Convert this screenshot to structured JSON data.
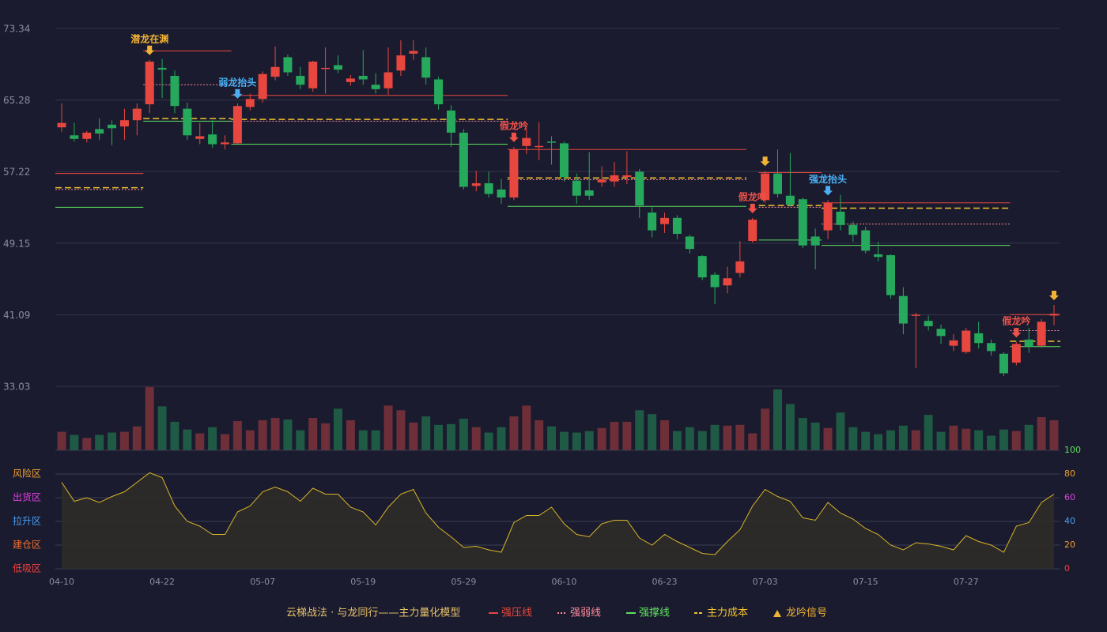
{
  "chart_data": {
    "type": "candlestick",
    "categories": [
      "04-10",
      null,
      null,
      null,
      null,
      null,
      null,
      null,
      "04-22",
      null,
      null,
      null,
      null,
      null,
      null,
      null,
      "05-07",
      null,
      null,
      null,
      null,
      null,
      null,
      null,
      "05-19",
      null,
      null,
      null,
      null,
      null,
      null,
      null,
      "05-29",
      null,
      null,
      null,
      null,
      null,
      null,
      null,
      "06-10",
      null,
      null,
      null,
      null,
      null,
      null,
      null,
      "06-23",
      null,
      null,
      null,
      null,
      null,
      null,
      null,
      "07-03",
      null,
      null,
      null,
      null,
      null,
      null,
      null,
      "07-15",
      null,
      null,
      null,
      null,
      null,
      null,
      null,
      "07-27",
      null,
      null,
      null,
      null,
      null,
      null,
      null
    ],
    "candles": [
      [
        62.2,
        62.7,
        61.7,
        64.9
      ],
      [
        61.3,
        60.9,
        60.6,
        62.7
      ],
      [
        60.9,
        61.6,
        60.5,
        61.8
      ],
      [
        62.0,
        61.5,
        60.8,
        63.2
      ],
      [
        62.5,
        62.1,
        60.2,
        63.0
      ],
      [
        62.3,
        63.0,
        60.8,
        64.3
      ],
      [
        63.0,
        64.3,
        61.3,
        64.9
      ],
      [
        64.8,
        69.6,
        63.8,
        69.8
      ],
      [
        68.9,
        68.7,
        65.5,
        69.9
      ],
      [
        68.0,
        64.6,
        63.8,
        68.6
      ],
      [
        64.3,
        61.3,
        60.8,
        65.0
      ],
      [
        60.9,
        61.2,
        60.3,
        62.7
      ],
      [
        61.4,
        60.3,
        59.9,
        63.0
      ],
      [
        60.3,
        60.5,
        59.7,
        61.3
      ],
      [
        60.4,
        64.6,
        60.2,
        64.9
      ],
      [
        64.5,
        65.4,
        64.1,
        66.0
      ],
      [
        65.4,
        68.2,
        65.0,
        68.5
      ],
      [
        67.9,
        69.0,
        67.5,
        71.3
      ],
      [
        70.1,
        68.4,
        68.0,
        70.4
      ],
      [
        68.0,
        67.0,
        66.5,
        69.0
      ],
      [
        66.6,
        69.6,
        66.2,
        69.7
      ],
      [
        68.8,
        68.9,
        66.0,
        71.2
      ],
      [
        69.2,
        68.7,
        68.3,
        70.3
      ],
      [
        67.3,
        67.7,
        66.9,
        68.1
      ],
      [
        68.0,
        67.6,
        67.0,
        70.9
      ],
      [
        67.0,
        66.5,
        66.0,
        68.3
      ],
      [
        66.6,
        68.4,
        65.9,
        71.2
      ],
      [
        68.6,
        70.3,
        68.0,
        72.0
      ],
      [
        70.5,
        70.8,
        69.8,
        72.0
      ],
      [
        70.1,
        67.8,
        67.0,
        71.2
      ],
      [
        67.6,
        64.8,
        64.2,
        67.9
      ],
      [
        64.1,
        61.6,
        60.0,
        64.7
      ],
      [
        61.6,
        55.5,
        55.2,
        62.0
      ],
      [
        55.6,
        55.9,
        55.0,
        57.3
      ],
      [
        55.9,
        54.7,
        54.3,
        57.2
      ],
      [
        55.2,
        54.3,
        53.6,
        56.4
      ],
      [
        54.3,
        59.7,
        54.0,
        60.0
      ],
      [
        60.1,
        61.0,
        59.2,
        62.1
      ],
      [
        60.0,
        60.1,
        58.5,
        62.8
      ],
      [
        60.6,
        60.5,
        58.0,
        61.2
      ],
      [
        60.4,
        56.6,
        56.1,
        60.6
      ],
      [
        56.2,
        54.5,
        53.6,
        57.0
      ],
      [
        55.1,
        54.5,
        54.0,
        59.4
      ],
      [
        56.0,
        56.3,
        55.5,
        57.8
      ],
      [
        56.1,
        56.8,
        55.5,
        58.3
      ],
      [
        56.6,
        56.8,
        55.8,
        59.5
      ],
      [
        57.2,
        53.4,
        52.0,
        57.5
      ],
      [
        52.6,
        50.6,
        49.8,
        53.2
      ],
      [
        51.3,
        52.0,
        50.3,
        52.6
      ],
      [
        52.0,
        50.2,
        49.6,
        52.3
      ],
      [
        49.9,
        48.5,
        48.0,
        50.1
      ],
      [
        47.7,
        45.3,
        45.0,
        47.8
      ],
      [
        45.6,
        44.2,
        42.3,
        45.9
      ],
      [
        44.4,
        45.2,
        43.5,
        46.5
      ],
      [
        45.8,
        47.1,
        45.3,
        49.4
      ],
      [
        49.4,
        51.8,
        49.2,
        52.0
      ],
      [
        54.0,
        57.0,
        53.7,
        57.3
      ],
      [
        57.0,
        54.7,
        54.3,
        59.7
      ],
      [
        54.5,
        53.5,
        53.3,
        59.3
      ],
      [
        54.1,
        48.9,
        48.6,
        54.3
      ],
      [
        49.9,
        48.9,
        46.2,
        50.8
      ],
      [
        50.6,
        53.7,
        49.6,
        54.0
      ],
      [
        52.7,
        51.2,
        50.6,
        54.6
      ],
      [
        51.2,
        50.1,
        49.3,
        51.6
      ],
      [
        50.6,
        48.3,
        48.0,
        51.0
      ],
      [
        47.9,
        47.6,
        47.1,
        49.3
      ],
      [
        47.8,
        43.3,
        42.9,
        47.9
      ],
      [
        43.2,
        40.1,
        38.9,
        44.2
      ],
      [
        41.0,
        41.1,
        35.1,
        41.3
      ],
      [
        40.4,
        39.8,
        39.3,
        41.0
      ],
      [
        39.5,
        38.7,
        37.8,
        40.0
      ],
      [
        37.6,
        38.2,
        37.0,
        38.9
      ],
      [
        36.9,
        39.3,
        36.7,
        39.6
      ],
      [
        39.0,
        37.9,
        37.3,
        40.3
      ],
      [
        37.9,
        37.0,
        36.5,
        38.3
      ],
      [
        36.7,
        34.5,
        34.2,
        36.9
      ],
      [
        35.7,
        37.8,
        35.4,
        38.0
      ],
      [
        38.3,
        37.5,
        36.8,
        39.6
      ],
      [
        37.6,
        40.3,
        37.4,
        40.6
      ],
      [
        41.0,
        41.2,
        39.9,
        42.2
      ]
    ],
    "ylim": [
      33.03,
      73.34
    ],
    "yticks": [
      33.03,
      41.09,
      49.15,
      57.22,
      65.28,
      73.34
    ],
    "up_color": "#e8473f",
    "down_color": "#26a95c",
    "volume": [
      24,
      20,
      16,
      20,
      23,
      24,
      31,
      82,
      57,
      37,
      27,
      22,
      30,
      21,
      38,
      26,
      39,
      42,
      40,
      26,
      42,
      35,
      54,
      39,
      26,
      26,
      58,
      52,
      36,
      44,
      33,
      34,
      41,
      30,
      23,
      30,
      44,
      58,
      39,
      31,
      24,
      23,
      25,
      29,
      37,
      37,
      52,
      47,
      39,
      25,
      30,
      25,
      33,
      32,
      33,
      22,
      54,
      79,
      60,
      42,
      36,
      29,
      49,
      30,
      24,
      21,
      26,
      32,
      26,
      46,
      24,
      32,
      28,
      26,
      19,
      27,
      25,
      33,
      43,
      39
    ],
    "zones": [
      {
        "from": 0,
        "to": 6,
        "levels": [
          57.0,
          55.2,
          53.2,
          55.4
        ]
      },
      {
        "from": 7,
        "to": 13,
        "levels": [
          70.8,
          67.0,
          62.9,
          63.2
        ]
      },
      {
        "from": 14,
        "to": 35,
        "levels": [
          65.8,
          62.9,
          60.3,
          63.1
        ]
      },
      {
        "from": 36,
        "to": 54,
        "levels": [
          59.7,
          56.3,
          53.3,
          56.5
        ]
      },
      {
        "from": 56,
        "to": 60,
        "levels": [
          57.1,
          53.2,
          49.5,
          53.4
        ]
      },
      {
        "from": 61,
        "to": 75,
        "levels": [
          53.7,
          51.3,
          48.9,
          53.1
        ]
      },
      {
        "from": 76,
        "to": 79,
        "levels": [
          41.1,
          39.3,
          37.5,
          38.1
        ]
      }
    ],
    "signals": [
      {
        "index": 7,
        "label": "潜龙在渊",
        "color": "#f2b233"
      },
      {
        "index": 14,
        "label": "弱龙抬头",
        "color": "#4ab0f5"
      },
      {
        "index": 36,
        "label": "假龙吟",
        "color": "#f0524a"
      },
      {
        "index": 55,
        "label": "假龙吟",
        "color": "#f0524a"
      },
      {
        "index": 56,
        "label": null,
        "color": "#f2b233"
      },
      {
        "index": 61,
        "label": "强龙抬头",
        "color": "#4ab0f5"
      },
      {
        "index": 76,
        "label": "假龙吟",
        "color": "#f0524a"
      },
      {
        "index": 79,
        "label": null,
        "color": "#f2b233"
      }
    ],
    "oscillator": {
      "values": [
        73,
        57,
        60,
        56,
        61,
        65,
        73,
        81,
        77,
        53,
        40,
        36,
        29,
        29,
        48,
        53,
        65,
        69,
        65,
        57,
        68,
        63,
        63,
        52,
        48,
        37,
        52,
        63,
        67,
        47,
        35,
        27,
        18,
        19,
        16,
        14,
        39,
        45,
        45,
        52,
        38,
        29,
        27,
        38,
        41,
        41,
        26,
        20,
        29,
        23,
        18,
        13,
        12,
        23,
        33,
        53,
        67,
        61,
        57,
        43,
        41,
        56,
        47,
        42,
        34,
        29,
        20,
        16,
        22,
        21,
        19,
        16,
        28,
        23,
        20,
        14,
        36,
        39,
        56,
        63
      ],
      "color": "#d8b52a",
      "ylim": [
        0,
        100
      ],
      "yticks": [
        0,
        20,
        40,
        60,
        80,
        100
      ],
      "ytick_colors": [
        "#f04040",
        "#f0a030",
        "#4a9ff5",
        "#e040e0",
        "#f0a030",
        "#5ee05e"
      ],
      "zones": [
        {
          "value": 80,
          "label": "风险区",
          "color": "#f0a030"
        },
        {
          "value": 60,
          "label": "出货区",
          "color": "#e040e0"
        },
        {
          "value": 40,
          "label": "拉升区",
          "color": "#4a9ff5"
        },
        {
          "value": 20,
          "label": "建仓区",
          "color": "#f07030"
        },
        {
          "value": 0,
          "label": "低吸区",
          "color": "#f04040"
        }
      ]
    },
    "legend_title": "云梯战法 · 与龙同行——主力量化模型",
    "legend": [
      {
        "label": "强压线",
        "color": "#e8473f",
        "style": "solid"
      },
      {
        "label": "强弱线",
        "color": "#ff8a9a",
        "style": "dotted"
      },
      {
        "label": "强撑线",
        "color": "#5ee05e",
        "style": "solid"
      },
      {
        "label": "主力成本",
        "color": "#f2c12e",
        "style": "dashed"
      },
      {
        "label": "龙吟信号",
        "color": "#f2b233",
        "style": "triangle"
      }
    ]
  }
}
